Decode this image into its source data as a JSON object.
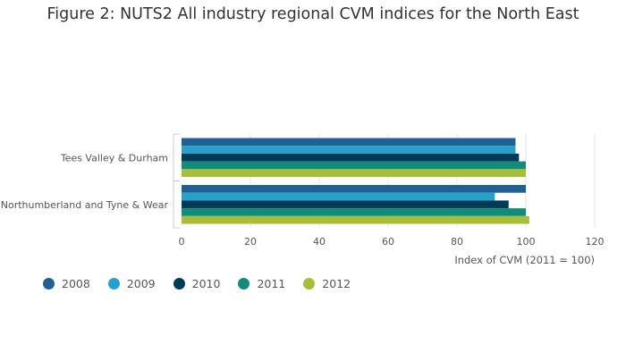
{
  "title": "Figure 2: NUTS2 All industry regional CVM indices for the North East",
  "chart_data": {
    "type": "bar",
    "orientation": "horizontal",
    "categories": [
      "Tees Valley & Durham",
      "Northumberland and Tyne & Wear"
    ],
    "series": [
      {
        "name": "2008",
        "color": "#206095",
        "values": [
          97,
          100
        ]
      },
      {
        "name": "2009",
        "color": "#27a0cc",
        "values": [
          97,
          91
        ]
      },
      {
        "name": "2010",
        "color": "#003c57",
        "values": [
          98,
          95
        ]
      },
      {
        "name": "2011",
        "color": "#118c7b",
        "values": [
          100,
          100
        ]
      },
      {
        "name": "2012",
        "color": "#a8bd3a",
        "values": [
          100,
          101
        ]
      }
    ],
    "xlim": [
      0,
      120
    ],
    "xticks": [
      0,
      20,
      40,
      60,
      80,
      100,
      120
    ],
    "xlabel": "Index of CVM (2011 = 100)",
    "ylabel": "",
    "grid": true,
    "legend_position": "bottom-left"
  }
}
